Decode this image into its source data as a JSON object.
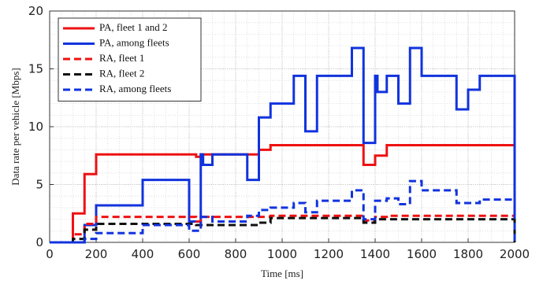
{
  "chart_data": {
    "type": "line",
    "drawstyle": "steps-post",
    "xlabel": "Time [ms]",
    "ylabel": "Data rate per vehicle [Mbps]",
    "xlim": [
      0,
      2000
    ],
    "xticks": [
      0,
      200,
      400,
      600,
      800,
      1000,
      1200,
      1400,
      1600,
      1800,
      2000
    ],
    "ylim": [
      0,
      20
    ],
    "yticks": [
      0,
      5,
      10,
      15,
      20
    ],
    "grid": true,
    "minor_grid": true,
    "legend": "upper left",
    "series": [
      {
        "name": "PA, fleet 1 and 2",
        "color": "#ee1111",
        "dash": false,
        "x": [
          0,
          100,
          150,
          200,
          630,
          650,
          900,
          950,
          1350,
          1400,
          1450,
          2000
        ],
        "values": [
          0,
          2.5,
          5.9,
          7.6,
          7.4,
          7.6,
          8.0,
          8.4,
          6.7,
          7.5,
          8.4,
          0
        ]
      },
      {
        "name": "PA, among fleets",
        "color": "#1133dd",
        "dash": false,
        "x": [
          0,
          150,
          200,
          400,
          600,
          650,
          660,
          700,
          850,
          900,
          950,
          1050,
          1100,
          1150,
          1300,
          1350,
          1400,
          1410,
          1450,
          1500,
          1550,
          1600,
          1750,
          1800,
          1850,
          2000
        ],
        "values": [
          0,
          1.5,
          3.2,
          5.4,
          1.8,
          7.6,
          6.7,
          7.6,
          5.4,
          10.8,
          12,
          14.4,
          9.6,
          14.4,
          16.8,
          8.6,
          14.4,
          13,
          14.4,
          12,
          16.8,
          14.4,
          11.5,
          13.2,
          14.4,
          0
        ]
      },
      {
        "name": "RA, fleet 1",
        "color": "#ee1111",
        "dash": true,
        "x": [
          0,
          100,
          150,
          200,
          630,
          650,
          950,
          1350,
          1400,
          1450,
          2000
        ],
        "values": [
          0,
          0.7,
          1.6,
          2.2,
          1.8,
          2.2,
          2.3,
          1.9,
          2.2,
          2.3,
          0
        ]
      },
      {
        "name": "RA, fleet 2",
        "color": "#111111",
        "dash": true,
        "x": [
          0,
          100,
          150,
          200,
          630,
          900,
          950,
          1350,
          1400,
          2000
        ],
        "values": [
          0,
          0.3,
          1.1,
          1.6,
          1.5,
          1.7,
          2.1,
          1.7,
          2.0,
          0
        ]
      },
      {
        "name": "RA, among fleets",
        "color": "#1133dd",
        "dash": true,
        "x": [
          0,
          150,
          200,
          400,
          600,
          650,
          700,
          850,
          900,
          950,
          1050,
          1100,
          1150,
          1300,
          1350,
          1400,
          1450,
          1500,
          1550,
          1600,
          1750,
          1850,
          2000
        ],
        "values": [
          0,
          0.3,
          0.8,
          1.5,
          1.0,
          2.2,
          1.8,
          2.3,
          2.8,
          3.0,
          3.4,
          2.6,
          3.6,
          4.5,
          2.0,
          3.6,
          3.8,
          3.3,
          5.3,
          4.5,
          3.4,
          3.7,
          0
        ]
      }
    ]
  }
}
